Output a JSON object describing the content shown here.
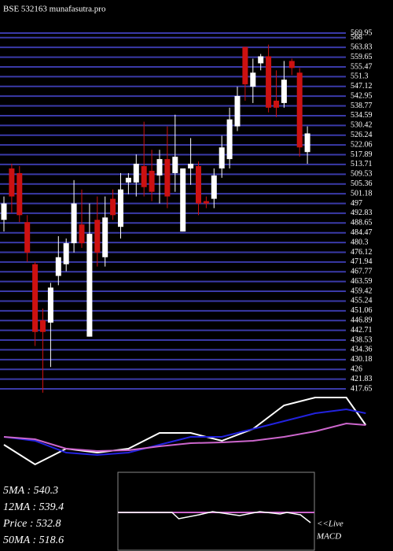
{
  "chart_data": {
    "type": "candlestick",
    "title": "BSE 532163 munafasutra.pro",
    "ylim": [
      417.65,
      569.95
    ],
    "yticks": [
      569.95,
      568,
      563.83,
      559.65,
      555.47,
      551.3,
      547.12,
      542.95,
      538.77,
      534.59,
      530.42,
      526.24,
      522.06,
      517.89,
      513.71,
      509.53,
      505.36,
      501.18,
      497,
      492.83,
      488.65,
      484.47,
      480.3,
      476.12,
      471.94,
      467.77,
      463.59,
      459.42,
      455.24,
      451.06,
      446.89,
      442.71,
      438.53,
      434.36,
      430.18,
      426,
      421.83,
      417.65
    ],
    "grid": true,
    "grid_color": "#3a3aa8",
    "up_color": "#ffffff",
    "down_color": "#cc1111",
    "open": [
      490,
      512,
      510,
      489,
      471,
      447,
      446,
      466,
      471,
      480,
      488,
      440,
      490,
      474,
      499,
      487,
      506,
      506,
      513,
      511,
      509,
      516,
      510,
      485,
      512,
      513,
      498,
      499,
      512,
      516,
      530,
      564,
      547,
      557,
      560,
      541,
      540,
      558,
      553,
      519
    ],
    "high": [
      500,
      514,
      513,
      492,
      472,
      452,
      463,
      483,
      482,
      507,
      503,
      497,
      500,
      500,
      503,
      510,
      510,
      518,
      532,
      520,
      520,
      530,
      535,
      512,
      525,
      515,
      500,
      512,
      526,
      538,
      547,
      564,
      559,
      561,
      565,
      554,
      558,
      559,
      555,
      530
    ],
    "low": [
      485,
      493,
      489,
      472,
      436,
      416,
      427,
      462,
      468,
      476,
      478,
      440,
      470,
      470,
      490,
      482,
      501,
      500,
      500,
      498,
      497,
      495,
      502,
      485,
      505,
      492,
      495,
      495,
      508,
      512,
      528,
      541,
      540,
      554,
      536,
      534,
      538,
      552,
      517,
      514
    ],
    "close": [
      497,
      500,
      492,
      476,
      442,
      442,
      461,
      474,
      480,
      497,
      480,
      484,
      476,
      491,
      492,
      503,
      508,
      514,
      504,
      502,
      516,
      500,
      517,
      512,
      514,
      497,
      497,
      509,
      521,
      533,
      543,
      548,
      553,
      560,
      538,
      538,
      550,
      555,
      521,
      527
    ],
    "indicators": {
      "x": [
        0,
        4,
        8,
        12,
        16,
        20,
        24,
        28,
        32,
        36,
        40,
        44,
        46.5
      ],
      "series": [
        {
          "name": "price",
          "color": "#ffffff",
          "values": [
            35,
            10,
            30,
            25,
            30,
            50,
            50,
            40,
            55,
            85,
            95,
            95,
            60
          ]
        },
        {
          "name": "ma",
          "color": "#2222dd",
          "values": [
            45,
            40,
            25,
            22,
            25,
            35,
            45,
            45,
            55,
            65,
            75,
            80,
            75
          ]
        },
        {
          "name": "ma50",
          "color": "#cc66cc",
          "values": [
            45,
            42,
            30,
            27,
            28,
            33,
            37,
            38,
            40,
            45,
            52,
            62,
            60
          ]
        }
      ]
    },
    "macd": {
      "x": [
        0,
        7,
        8,
        9,
        12,
        14,
        18,
        21,
        24,
        25,
        27,
        28.5
      ],
      "values": [
        0,
        0,
        0,
        -8,
        -3,
        1,
        -4,
        1,
        -2,
        0,
        -3,
        -13
      ]
    },
    "stats": [
      "5MA : 540.3",
      "12MA : 539.4",
      "Price   : 532.8",
      "50MA : 518.6"
    ],
    "live_label": "<<Live",
    "macd_label": "MACD"
  }
}
